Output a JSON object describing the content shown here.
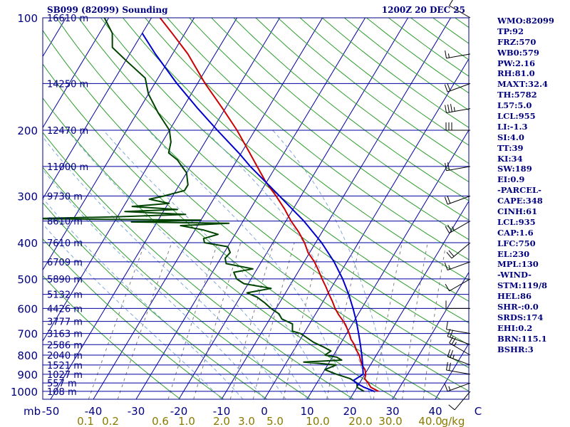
{
  "header": {
    "station": "SB099 (82099) Sounding",
    "time": "1200Z 20 DEC 25"
  },
  "colors": {
    "frame": "#000080",
    "isobar": "#0000a0",
    "isotherm": "#0000a0",
    "dry_adiabat": "#2e9e2e",
    "moist_adiabat": "#7fa8d8",
    "mixing_ratio": "#808080",
    "temperature": "#cc0000",
    "dewpoint": "#004400",
    "parcel": "#0000cc"
  },
  "chart_data": {
    "type": "line",
    "title": "SB099 (82099) Sounding",
    "subtitle": "1200Z 20 DEC 25",
    "xlabel": "",
    "ylabel": "mb",
    "skew_t": true,
    "x_axis_unit": "°C",
    "pressure_ticks": [
      100,
      200,
      300,
      400,
      500,
      600,
      700,
      800,
      900,
      1000
    ],
    "temperature_ticks": [
      -50,
      -40,
      -30,
      -20,
      -10,
      0,
      10,
      20,
      30,
      40,
      50
    ],
    "temperature_tick_labels": [
      "-50",
      "-40",
      "-30",
      "-20",
      "-10",
      "0",
      "10",
      "20",
      "30",
      "40",
      "C"
    ],
    "mixing_ratio_labels": [
      "0.1",
      "0.2",
      "0.6",
      "1.0",
      "2.0",
      "3.0",
      "5.0",
      "10.0",
      "20.0",
      "30.0",
      "40.0"
    ],
    "mixing_ratio_unit": "g/kg",
    "height_labels": [
      {
        "p": 100,
        "label": "16610 m"
      },
      {
        "p": 150,
        "label": "14250 m"
      },
      {
        "p": 200,
        "label": "12470 m"
      },
      {
        "p": 250,
        "label": "11000 m"
      },
      {
        "p": 300,
        "label": "9730 m"
      },
      {
        "p": 350,
        "label": "8610 m"
      },
      {
        "p": 400,
        "label": "7610 m"
      },
      {
        "p": 450,
        "label": "6709 m"
      },
      {
        "p": 500,
        "label": "5890 m"
      },
      {
        "p": 550,
        "label": "5132 m"
      },
      {
        "p": 600,
        "label": "4426 m"
      },
      {
        "p": 650,
        "label": "3777 m"
      },
      {
        "p": 700,
        "label": "3163 m"
      },
      {
        "p": 750,
        "label": "2586 m"
      },
      {
        "p": 800,
        "label": "2040 m"
      },
      {
        "p": 850,
        "label": "1521 m"
      },
      {
        "p": 900,
        "label": "1027 m"
      },
      {
        "p": 950,
        "label": "557 m"
      },
      {
        "p": 1000,
        "label": "108 m"
      }
    ],
    "series": [
      {
        "name": "Temperature",
        "points": [
          [
            1000,
            25.6
          ],
          [
            975,
            23.2
          ],
          [
            950,
            22.0
          ],
          [
            925,
            20.6
          ],
          [
            900,
            20.2
          ],
          [
            875,
            19.4
          ],
          [
            850,
            18.0
          ],
          [
            825,
            17.0
          ],
          [
            800,
            16.0
          ],
          [
            775,
            14.6
          ],
          [
            750,
            13.4
          ],
          [
            725,
            11.8
          ],
          [
            700,
            10.6
          ],
          [
            675,
            9.2
          ],
          [
            650,
            7.6
          ],
          [
            625,
            5.6
          ],
          [
            600,
            3.8
          ],
          [
            575,
            2.2
          ],
          [
            550,
            0.4
          ],
          [
            525,
            -1.4
          ],
          [
            500,
            -3.4
          ],
          [
            475,
            -5.4
          ],
          [
            450,
            -7.6
          ],
          [
            425,
            -10.4
          ],
          [
            400,
            -12.6
          ],
          [
            375,
            -15.4
          ],
          [
            350,
            -18.8
          ],
          [
            325,
            -22.0
          ],
          [
            300,
            -25.8
          ],
          [
            275,
            -30.2
          ],
          [
            250,
            -34.4
          ],
          [
            225,
            -39.0
          ],
          [
            200,
            -44.2
          ],
          [
            175,
            -50.6
          ],
          [
            150,
            -58.2
          ],
          [
            125,
            -66.4
          ],
          [
            110,
            -73.0
          ],
          [
            100,
            -78.0
          ]
        ]
      },
      {
        "name": "Dewpoint",
        "points": [
          [
            1000,
            22.2
          ],
          [
            975,
            20.0
          ],
          [
            950,
            19.4
          ],
          [
            925,
            17.2
          ],
          [
            900,
            13.4
          ],
          [
            875,
            10.0
          ],
          [
            850,
            12.0
          ],
          [
            835,
            4.0
          ],
          [
            825,
            12.6
          ],
          [
            810,
            11.0
          ],
          [
            800,
            8.0
          ],
          [
            780,
            8.8
          ],
          [
            760,
            6.4
          ],
          [
            740,
            3.6
          ],
          [
            700,
            -0.8
          ],
          [
            690,
            -3.0
          ],
          [
            660,
            -4.0
          ],
          [
            640,
            -7.2
          ],
          [
            620,
            -8.6
          ],
          [
            600,
            -11.2
          ],
          [
            580,
            -13.4
          ],
          [
            560,
            -16.0
          ],
          [
            545,
            -19.0
          ],
          [
            530,
            -14.0
          ],
          [
            515,
            -21.0
          ],
          [
            500,
            -23.4
          ],
          [
            480,
            -25.0
          ],
          [
            470,
            -21.0
          ],
          [
            455,
            -28.0
          ],
          [
            440,
            -29.0
          ],
          [
            425,
            -28.6
          ],
          [
            410,
            -30.0
          ],
          [
            400,
            -36.0
          ],
          [
            390,
            -36.8
          ],
          [
            380,
            -34.0
          ],
          [
            370,
            -38.0
          ],
          [
            360,
            -44.0
          ],
          [
            355,
            -33.0
          ],
          [
            352,
            -56.0
          ],
          [
            348,
            -40.0
          ],
          [
            345,
            -80.0
          ],
          [
            341,
            -60.0
          ],
          [
            336,
            -44.4
          ],
          [
            330,
            -59.0
          ],
          [
            326,
            -47.0
          ],
          [
            320,
            -58.0
          ],
          [
            314,
            -49.8
          ],
          [
            306,
            -55.0
          ],
          [
            300,
            -52.0
          ],
          [
            290,
            -48.0
          ],
          [
            280,
            -48.0
          ],
          [
            270,
            -49.0
          ],
          [
            260,
            -50.0
          ],
          [
            250,
            -52.0
          ],
          [
            240,
            -54.0
          ],
          [
            230,
            -57.0
          ],
          [
            215,
            -58.0
          ],
          [
            200,
            -60.0
          ],
          [
            180,
            -65.0
          ],
          [
            160,
            -70.0
          ],
          [
            145,
            -73.0
          ],
          [
            130,
            -80.0
          ],
          [
            120,
            -85.0
          ],
          [
            110,
            -87.0
          ],
          [
            100,
            -91.0
          ]
        ]
      },
      {
        "name": "Parcel",
        "points": [
          [
            1000,
            24.6
          ],
          [
            975,
            21.6
          ],
          [
            950,
            19.2
          ],
          [
            935,
            18.2
          ],
          [
            900,
            19.6
          ],
          [
            850,
            18.2
          ],
          [
            800,
            16.6
          ],
          [
            750,
            14.8
          ],
          [
            700,
            12.8
          ],
          [
            650,
            10.6
          ],
          [
            600,
            8.0
          ],
          [
            550,
            5.0
          ],
          [
            500,
            1.4
          ],
          [
            450,
            -3.0
          ],
          [
            400,
            -8.6
          ],
          [
            350,
            -15.8
          ],
          [
            300,
            -25.0
          ],
          [
            250,
            -36.0
          ],
          [
            230,
            -40.6
          ],
          [
            200,
            -48.8
          ],
          [
            175,
            -56.4
          ],
          [
            150,
            -64.8
          ],
          [
            125,
            -74.0
          ],
          [
            110,
            -80.0
          ]
        ]
      }
    ],
    "winds": [
      {
        "p": 1000,
        "dir": 220,
        "spd": 10
      },
      {
        "p": 950,
        "dir": 250,
        "spd": 15
      },
      {
        "p": 900,
        "dir": 280,
        "spd": 20
      },
      {
        "p": 850,
        "dir": 290,
        "spd": 25
      },
      {
        "p": 800,
        "dir": 300,
        "spd": 25
      },
      {
        "p": 750,
        "dir": 290,
        "spd": 20
      },
      {
        "p": 700,
        "dir": 280,
        "spd": 10
      },
      {
        "p": 600,
        "dir": 270,
        "spd": 10
      },
      {
        "p": 500,
        "dir": 240,
        "spd": 10
      },
      {
        "p": 450,
        "dir": 250,
        "spd": 15
      },
      {
        "p": 400,
        "dir": 230,
        "spd": 20
      },
      {
        "p": 350,
        "dir": 240,
        "spd": 25
      },
      {
        "p": 300,
        "dir": 250,
        "spd": 20
      },
      {
        "p": 250,
        "dir": 260,
        "spd": 20
      },
      {
        "p": 200,
        "dir": 270,
        "spd": 30
      },
      {
        "p": 175,
        "dir": 260,
        "spd": 35
      },
      {
        "p": 150,
        "dir": 250,
        "spd": 20
      },
      {
        "p": 125,
        "dir": 260,
        "spd": 15
      },
      {
        "p": 100,
        "dir": 300,
        "spd": 10
      }
    ]
  },
  "indices": [
    "WMO:82099",
    "TP:92",
    "FRZ:570",
    "WB0:579",
    "PW:2.16",
    "RH:81.0",
    "MAXT:32.4",
    "TH:5782",
    "L57:5.0",
    "LCL:955",
    "LI:-1.3",
    "SI:4.0",
    "TT:39",
    "KI:34",
    "SW:189",
    "EI:0.9",
    "-PARCEL-",
    "CAPE:348",
    "CINH:61",
    "LCL:935",
    "CAP:1.6",
    "LFC:750",
    "EL:230",
    "MPL:130",
    "-WIND-",
    "STM:119/8",
    "HEL:86",
    "SHR-:0.0",
    "SRDS:174",
    "EHI:0.2",
    "BRN:115.1",
    "BSHR:3"
  ]
}
